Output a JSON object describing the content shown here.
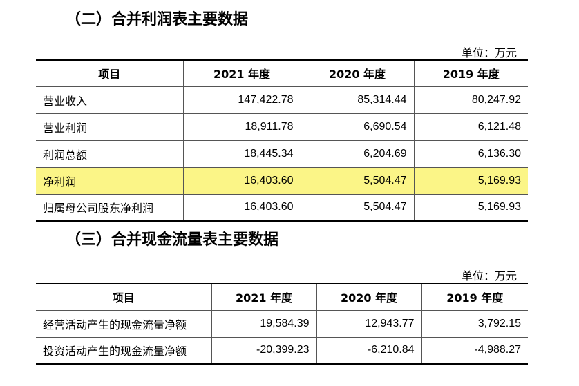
{
  "income": {
    "heading": "（二）合并利润表主要数据",
    "unit": "单位：万元",
    "headers": [
      "项目",
      "2021 年度",
      "2020 年度",
      "2019 年度"
    ],
    "rows": [
      {
        "label": "营业收入",
        "v2021": "147,422.78",
        "v2020": "85,314.44",
        "v2019": "80,247.92"
      },
      {
        "label": "营业利润",
        "v2021": "18,911.78",
        "v2020": "6,690.54",
        "v2019": "6,121.48"
      },
      {
        "label": "利润总额",
        "v2021": "18,445.34",
        "v2020": "6,204.69",
        "v2019": "6,136.30"
      },
      {
        "label": "净利润",
        "v2021": "16,403.60",
        "v2020": "5,504.47",
        "v2019": "5,169.93"
      },
      {
        "label": "归属母公司股东净利润",
        "v2021": "16,403.60",
        "v2020": "5,504.47",
        "v2019": "5,169.93"
      }
    ]
  },
  "cashflow": {
    "heading": "（三）合并现金流量表主要数据",
    "unit": "单位：万元",
    "headers": [
      "项目",
      "2021 年度",
      "2020 年度",
      "2019 年度"
    ],
    "rows": [
      {
        "label": "经营活动产生的现金流量净额",
        "v2021": "19,584.39",
        "v2020": "12,943.77",
        "v2019": "3,792.15"
      },
      {
        "label": "投资活动产生的现金流量净额",
        "v2021": "-20,399.23",
        "v2020": "-6,210.84",
        "v2019": "-4,988.27"
      }
    ]
  },
  "highlight_color": "#fbf587"
}
